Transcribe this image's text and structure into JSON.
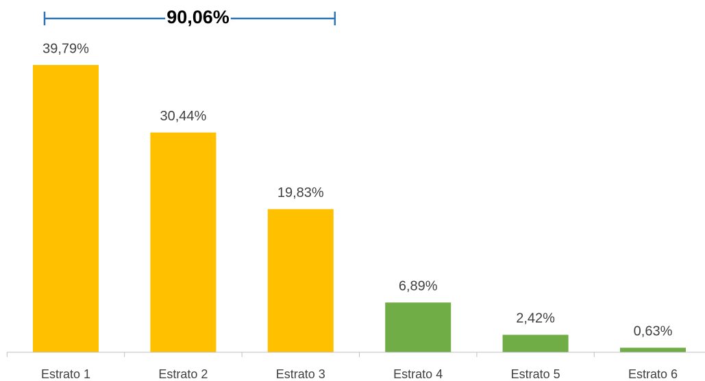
{
  "chart_data": {
    "type": "bar",
    "categories": [
      "Estrato 1",
      "Estrato 2",
      "Estrato 3",
      "Estrato 4",
      "Estrato 5",
      "Estrato 6"
    ],
    "values": [
      39.79,
      30.44,
      19.83,
      6.89,
      2.42,
      0.63
    ],
    "value_labels": [
      "39,79%",
      "30,44%",
      "19,83%",
      "6,89%",
      "2,42%",
      "0,63%"
    ],
    "colors": [
      "#FFC000",
      "#FFC000",
      "#FFC000",
      "#70AD47",
      "#70AD47",
      "#70AD47"
    ],
    "ylim": [
      0,
      45
    ],
    "annotation": {
      "text": "90,06%",
      "color": "#2E75B6"
    }
  }
}
